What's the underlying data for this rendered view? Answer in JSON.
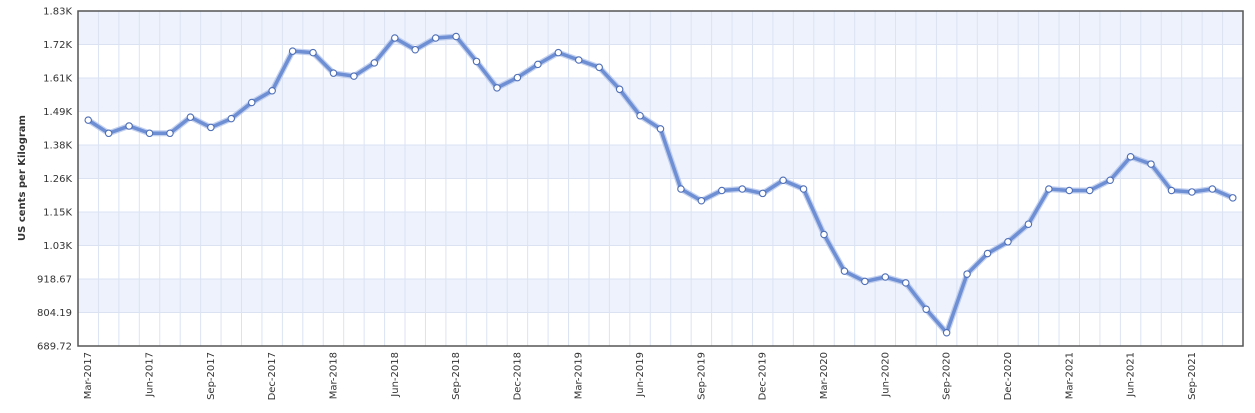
{
  "chart_data": {
    "type": "line",
    "title": "",
    "xlabel": "",
    "ylabel": "US cents per Kilogram",
    "y_ticks": [
      "689.72",
      "804.19",
      "918.67",
      "1.03K",
      "1.15K",
      "1.26K",
      "1.38K",
      "1.49K",
      "1.61K",
      "1.72K",
      "1.83K"
    ],
    "x_ticks": [
      "Mar-2017",
      "Jun-2017",
      "Sep-2017",
      "Dec-2017",
      "Mar-2018",
      "Jun-2018",
      "Sep-2018",
      "Dec-2018",
      "Mar-2019",
      "Jun-2019",
      "Sep-2019",
      "Dec-2019",
      "Mar-2020",
      "Jun-2020",
      "Sep-2020",
      "Dec-2020",
      "Mar-2021",
      "Jun-2021",
      "Sep-2021"
    ],
    "ylim": [
      689.72,
      1832.0
    ],
    "grid": true,
    "legend": "none",
    "colors": {
      "line": "#6f8fd4",
      "band": "#eef2fc",
      "grid": "#dbe3f3",
      "border": "#555555"
    },
    "series": [
      {
        "x": [
          "Mar-2017",
          "Apr-2017",
          "May-2017",
          "Jun-2017",
          "Jul-2017",
          "Aug-2017",
          "Sep-2017",
          "Oct-2017",
          "Nov-2017",
          "Dec-2017",
          "Jan-2018",
          "Feb-2018",
          "Mar-2018",
          "Apr-2018",
          "May-2018",
          "Jun-2018",
          "Jul-2018",
          "Aug-2018",
          "Sep-2018",
          "Oct-2018",
          "Nov-2018",
          "Dec-2018",
          "Jan-2019",
          "Feb-2019",
          "Mar-2019",
          "Apr-2019",
          "May-2019",
          "Jun-2019",
          "Jul-2019",
          "Aug-2019",
          "Sep-2019",
          "Oct-2019",
          "Nov-2019",
          "Dec-2019",
          "Jan-2020",
          "Feb-2020",
          "Mar-2020",
          "Apr-2020",
          "May-2020",
          "Jun-2020",
          "Jul-2020",
          "Aug-2020",
          "Sep-2020",
          "Oct-2020",
          "Nov-2020",
          "Dec-2020",
          "Jan-2021",
          "Feb-2021",
          "Mar-2021",
          "Apr-2021",
          "May-2021",
          "Jun-2021",
          "Jul-2021",
          "Aug-2021",
          "Sep-2021",
          "Oct-2021",
          "Nov-2021"
        ],
        "values": [
          1460,
          1415,
          1440,
          1415,
          1415,
          1470,
          1435,
          1465,
          1520,
          1560,
          1695,
          1690,
          1620,
          1610,
          1655,
          1740,
          1700,
          1740,
          1745,
          1660,
          1570,
          1605,
          1650,
          1690,
          1665,
          1640,
          1565,
          1475,
          1430,
          1225,
          1185,
          1220,
          1225,
          1210,
          1255,
          1225,
          1070,
          945,
          910,
          925,
          905,
          815,
          735,
          935,
          1005,
          1045,
          1105,
          1225,
          1220,
          1220,
          1255,
          1335,
          1310,
          1220,
          1215,
          1225,
          1195
        ]
      }
    ]
  }
}
